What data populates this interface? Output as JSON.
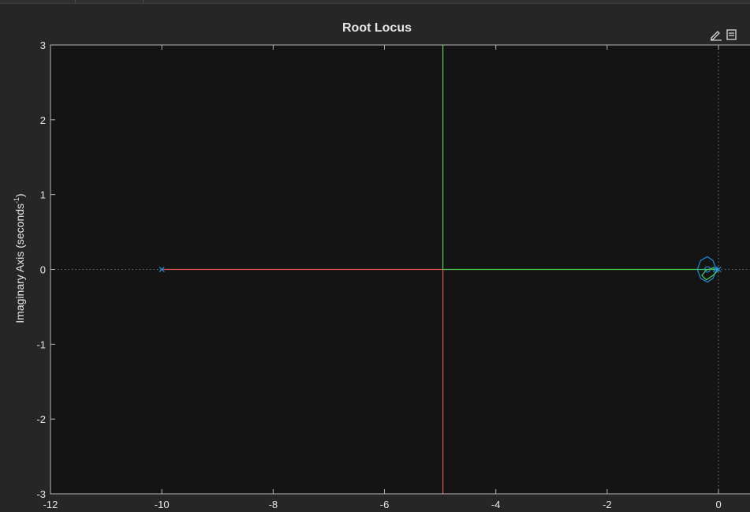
{
  "figure_tabs": [
    "",
    ""
  ],
  "axes_toolbar": {
    "icons": [
      "edit-plot-icon",
      "data-cursor-icon"
    ]
  },
  "chart_data": {
    "type": "line",
    "title": "Root Locus",
    "xlabel": "",
    "ylabel": "Imaginary Axis  (seconds",
    "ylabel_superscript": "-1",
    "ylabel_suffix": ")",
    "xlim": [
      -12,
      0.75
    ],
    "ylim": [
      -3,
      3
    ],
    "xticks": [
      -12,
      -10,
      -8,
      -6,
      -4,
      -2,
      0
    ],
    "yticks": [
      -3,
      -2,
      -1,
      0,
      1,
      2,
      3
    ],
    "grid": false,
    "reference_lines": {
      "x": 0,
      "y": 0,
      "style": "dotted"
    },
    "colors": {
      "background": "#262626",
      "plot_background": "#141414",
      "axes": "#b4b4b4",
      "text": "#e6e6e6"
    },
    "poles": [
      {
        "x": -10,
        "y": 0
      },
      {
        "x": -0.05,
        "y": 0
      },
      {
        "x": 0,
        "y": 0
      }
    ],
    "zeros": [
      {
        "x": -0.2,
        "y": 0
      }
    ],
    "series": [
      {
        "color": "#e05555",
        "x": [
          -10,
          -4.95,
          -4.95
        ],
        "y": [
          0,
          0,
          -3
        ]
      },
      {
        "color": "#4fd04f",
        "x": [
          0,
          -4.95,
          -4.95
        ],
        "y": [
          0,
          0,
          3
        ]
      },
      {
        "color": "#1f8fe0",
        "x": [
          -0.05,
          -0.1,
          -0.2,
          -0.32,
          -0.38,
          -0.32,
          -0.2,
          -0.1,
          -0.05
        ],
        "y": [
          0.02,
          0.12,
          0.17,
          0.12,
          0,
          -0.12,
          -0.17,
          -0.12,
          -0.02
        ]
      },
      {
        "color": "#4fd04f",
        "x": [
          0,
          -0.1,
          -0.22,
          -0.3,
          -0.22,
          -0.1,
          0
        ],
        "y": [
          -0.01,
          -0.08,
          -0.14,
          -0.08,
          -0.01,
          0.02,
          0
        ]
      }
    ]
  }
}
